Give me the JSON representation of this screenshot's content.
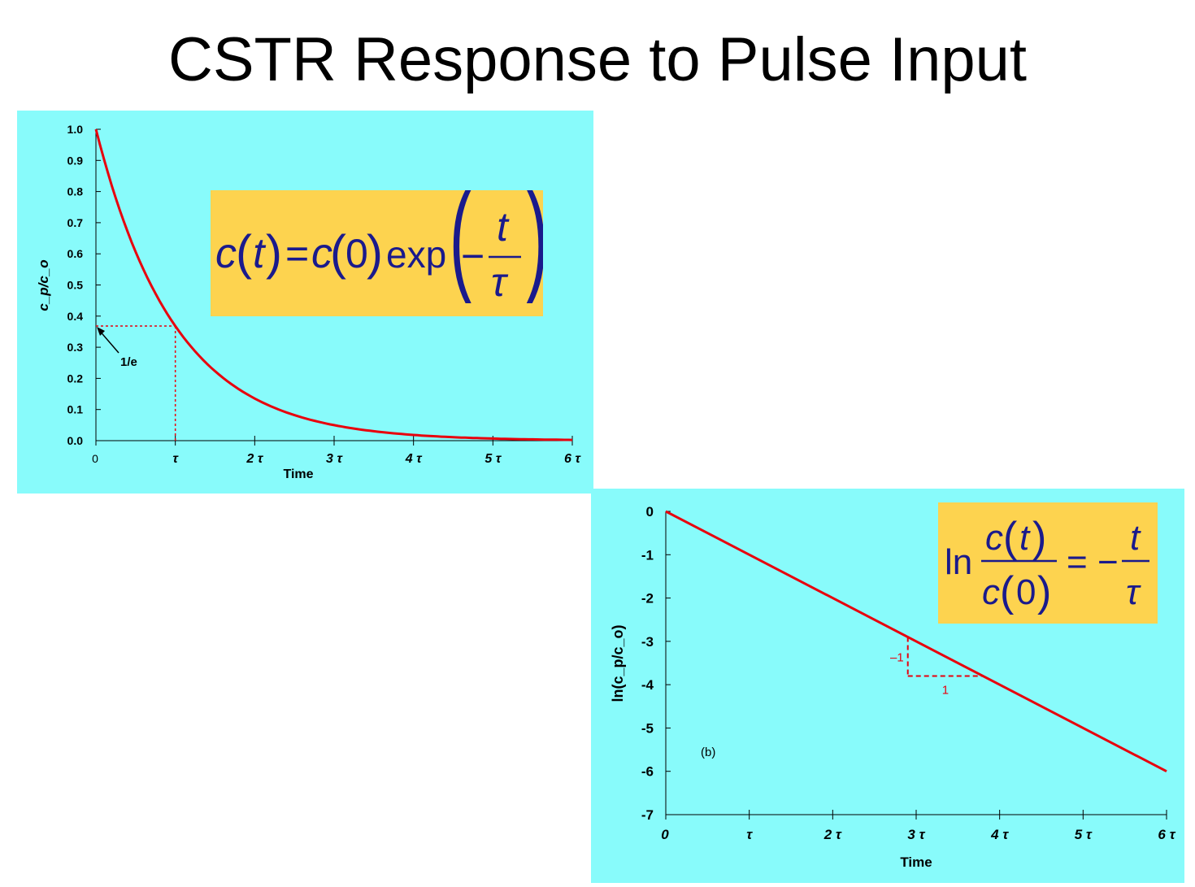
{
  "title": "CSTR Response to Pulse Input",
  "colors": {
    "panel_bg": "#88fbfb",
    "equation_bg": "#fdd34f",
    "curve": "#e8000d",
    "equation_text": "#1a1a8c"
  },
  "chart_data": [
    {
      "type": "line",
      "panel": "a",
      "xlabel": "Time",
      "ylabel": "c_p/c_o",
      "xlim": [
        0,
        6
      ],
      "ylim": [
        0,
        1.0
      ],
      "x_tick_values": [
        0,
        1,
        2,
        3,
        4,
        5,
        6
      ],
      "x_tick_labels": [
        "0",
        "τ",
        "2 τ",
        "3 τ",
        "4 τ",
        "5 τ",
        "6 τ"
      ],
      "y_tick_values": [
        0.0,
        0.1,
        0.2,
        0.3,
        0.4,
        0.5,
        0.6,
        0.7,
        0.8,
        0.9,
        1.0
      ],
      "y_tick_labels": [
        "0.0",
        "0.1",
        "0.2",
        "0.3",
        "0.4",
        "0.5",
        "0.6",
        "0.7",
        "0.8",
        "0.9",
        "1.0"
      ],
      "series": [
        {
          "function": "exp(-t)",
          "x": [
            0,
            0.25,
            0.5,
            0.75,
            1,
            1.5,
            2,
            2.5,
            3,
            3.5,
            4,
            4.5,
            5,
            5.5,
            6
          ],
          "y": [
            1.0,
            0.779,
            0.607,
            0.472,
            0.368,
            0.223,
            0.135,
            0.082,
            0.05,
            0.03,
            0.018,
            0.011,
            0.007,
            0.004,
            0.002
          ]
        }
      ],
      "annotations": {
        "one_over_e_label": "1/e",
        "one_over_e_value": 0.368,
        "one_over_e_time": 1
      },
      "equation": {
        "lhs": "c",
        "arg_t": "t",
        "equals": "=",
        "c0": "c",
        "zero": "0",
        "exp": "exp",
        "minus": "−",
        "num": "t",
        "den": "τ"
      }
    },
    {
      "type": "line",
      "panel": "b",
      "label": "(b)",
      "xlabel": "Time",
      "ylabel": "ln(c_p/c_o)",
      "xlim": [
        0,
        6
      ],
      "ylim": [
        -7,
        0
      ],
      "x_tick_values": [
        0,
        1,
        2,
        3,
        4,
        5,
        6
      ],
      "x_tick_labels": [
        "0",
        "τ",
        "2 τ",
        "3 τ",
        "4 τ",
        "5 τ",
        "6 τ"
      ],
      "y_tick_values": [
        0,
        -1,
        -2,
        -3,
        -4,
        -5,
        -6,
        -7
      ],
      "y_tick_labels": [
        "0",
        "-1",
        "-2",
        "-3",
        "-4",
        "-5",
        "-6",
        "-7"
      ],
      "series": [
        {
          "x": [
            0,
            6
          ],
          "y": [
            0,
            -6
          ]
        }
      ],
      "slope_triangle": {
        "x_start": 2.9,
        "x_end": 3.8,
        "y_top": -2.9,
        "y_bottom": -3.8,
        "rise_label": "–1",
        "run_label": "1"
      },
      "equation": {
        "ln": "ln",
        "num_c": "c",
        "num_t": "t",
        "den_c": "c",
        "den_0": "0",
        "equals": "=",
        "minus": "−",
        "rhs_num": "t",
        "rhs_den": "τ"
      }
    }
  ]
}
